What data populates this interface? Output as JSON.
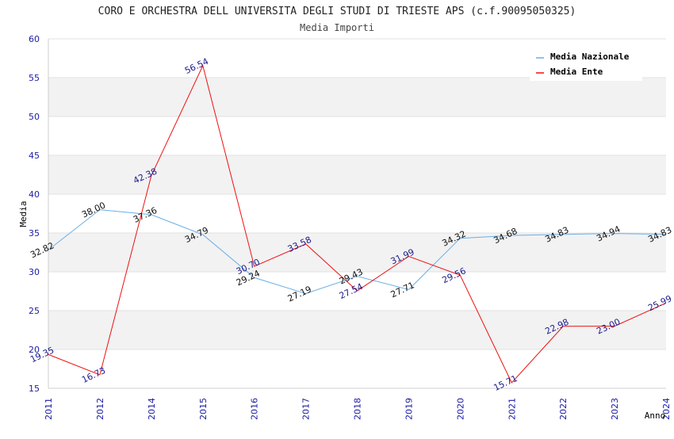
{
  "chart_data": {
    "type": "line",
    "title": "CORO E ORCHESTRA DELL UNIVERSITA DEGLI STUDI DI TRIESTE APS (c.f.90095050325)",
    "subtitle": "Media Importi",
    "xlabel": "Anno",
    "ylabel": "Media",
    "ylim": [
      15,
      60
    ],
    "yticks": [
      15,
      20,
      25,
      30,
      35,
      40,
      45,
      50,
      55,
      60
    ],
    "x": [
      "2011",
      "2012",
      "2014",
      "2015",
      "2016",
      "2017",
      "2018",
      "2019",
      "2020",
      "2021",
      "2022",
      "2023",
      "2024"
    ],
    "series": [
      {
        "name": "Media Nazionale",
        "color": "#6aaee6",
        "values": [
          32.82,
          38.0,
          37.36,
          34.79,
          29.24,
          27.19,
          29.43,
          27.71,
          34.32,
          34.68,
          34.83,
          34.94,
          34.83
        ],
        "labels": [
          "32.82",
          "38.00",
          "37.36",
          "34.79",
          "29.24",
          "27.19",
          "29.43",
          "27.71",
          "34.32",
          "34.68",
          "34.83",
          "34.94",
          "34.83"
        ]
      },
      {
        "name": "Media Ente",
        "color": "#ee1111",
        "values": [
          19.35,
          16.73,
          42.38,
          56.54,
          30.7,
          33.58,
          27.54,
          31.99,
          29.56,
          15.71,
          22.98,
          23.0,
          25.99
        ],
        "labels": [
          "19.35",
          "16.73",
          "42.38",
          "56.54",
          "30.70",
          "33.58",
          "27.54",
          "31.99",
          "29.56",
          "15.71",
          "22.98",
          "23.00",
          "25.99"
        ]
      }
    ],
    "legend": "top-right",
    "grid": "horizontal alternating bands"
  }
}
